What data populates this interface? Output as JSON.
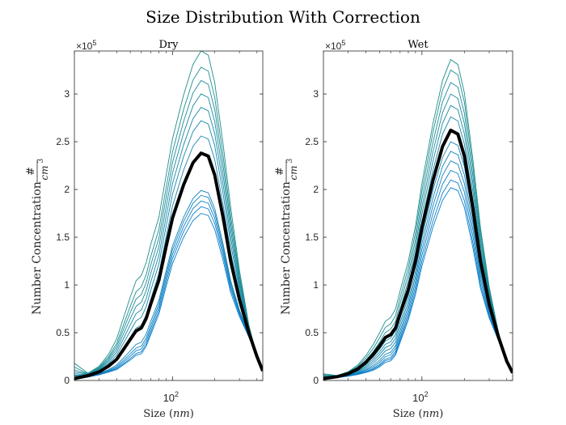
{
  "figure": {
    "title": "Size Distribution With Correction",
    "bg": "#ffffff"
  },
  "colors": {
    "mean_line": "#000000",
    "lines_dark": "#1e8e8a",
    "lines_light": "#0b7fd0",
    "axes": "#262626"
  },
  "chart_data": [
    {
      "type": "line",
      "title": "Dry",
      "xlabel": "Size (nm)",
      "ylabel": "Number Concentration #/cm^3",
      "x_scale": "log",
      "xlim": [
        20,
        440
      ],
      "ylim": [
        0,
        345000
      ],
      "y_exponent_label": "×10^5",
      "yticks": [
        0,
        50000,
        100000,
        150000,
        200000,
        250000,
        300000
      ],
      "ytick_labels": [
        "0",
        "0.5",
        "1",
        "1.5",
        "2",
        "2.5",
        "3"
      ],
      "xticks": [
        100
      ],
      "xtick_labels": [
        "10^2"
      ],
      "x": [
        20,
        25,
        30,
        35,
        40,
        45,
        50,
        55,
        60,
        65,
        70,
        80,
        90,
        100,
        120,
        140,
        160,
        180,
        200,
        230,
        260,
        300,
        350,
        400,
        440
      ],
      "mean": [
        2000,
        5000,
        9000,
        15000,
        22000,
        33000,
        43000,
        52000,
        55000,
        65000,
        80000,
        105000,
        140000,
        170000,
        205000,
        228000,
        238000,
        235000,
        215000,
        170000,
        125000,
        85000,
        50000,
        25000,
        10000
      ],
      "series_peaks": [
        345000,
        328000,
        314000,
        300000,
        286000,
        272000,
        256000,
        199000,
        194000,
        188000,
        182000,
        175000
      ],
      "series_shoulders": [
        110000,
        98000,
        90000,
        82000,
        74000,
        66000,
        58000,
        40000,
        36000,
        33000,
        30000,
        28000
      ],
      "series_starts": [
        18000,
        14000,
        11000,
        9000,
        7000,
        5500,
        4500,
        3000,
        2500,
        2000,
        1500,
        1000
      ]
    },
    {
      "type": "line",
      "title": "Wet",
      "xlabel": "Size (nm)",
      "ylabel": "Number Concentration #/cm^3",
      "x_scale": "log",
      "xlim": [
        20,
        440
      ],
      "ylim": [
        0,
        345000
      ],
      "y_exponent_label": "×10^5",
      "yticks": [
        0,
        50000,
        100000,
        150000,
        200000,
        250000,
        300000
      ],
      "ytick_labels": [
        "0",
        "0.5",
        "1",
        "1.5",
        "2",
        "2.5",
        "3"
      ],
      "xticks": [
        100
      ],
      "xtick_labels": [
        "10^2"
      ],
      "x": [
        20,
        25,
        30,
        35,
        40,
        45,
        50,
        55,
        60,
        65,
        70,
        80,
        90,
        100,
        120,
        140,
        160,
        180,
        200,
        230,
        260,
        300,
        350,
        400,
        440
      ],
      "mean": [
        2000,
        4000,
        7000,
        12000,
        19000,
        27000,
        36000,
        45000,
        48000,
        55000,
        70000,
        95000,
        125000,
        160000,
        210000,
        245000,
        262000,
        258000,
        235000,
        180000,
        125000,
        80000,
        45000,
        20000,
        8000
      ],
      "series_peaks": [
        336000,
        325000,
        312000,
        300000,
        288000,
        276000,
        262000,
        250000,
        240000,
        230000,
        220000,
        210000,
        202000
      ],
      "series_shoulders": [
        75000,
        68000,
        62000,
        56000,
        52000,
        48000,
        44000,
        40000,
        36000,
        33000,
        30000,
        28000,
        26000
      ],
      "series_starts": [
        7000,
        6000,
        5000,
        4500,
        4000,
        3500,
        3000,
        2500,
        2000,
        1800,
        1500,
        1200,
        1000
      ]
    }
  ]
}
